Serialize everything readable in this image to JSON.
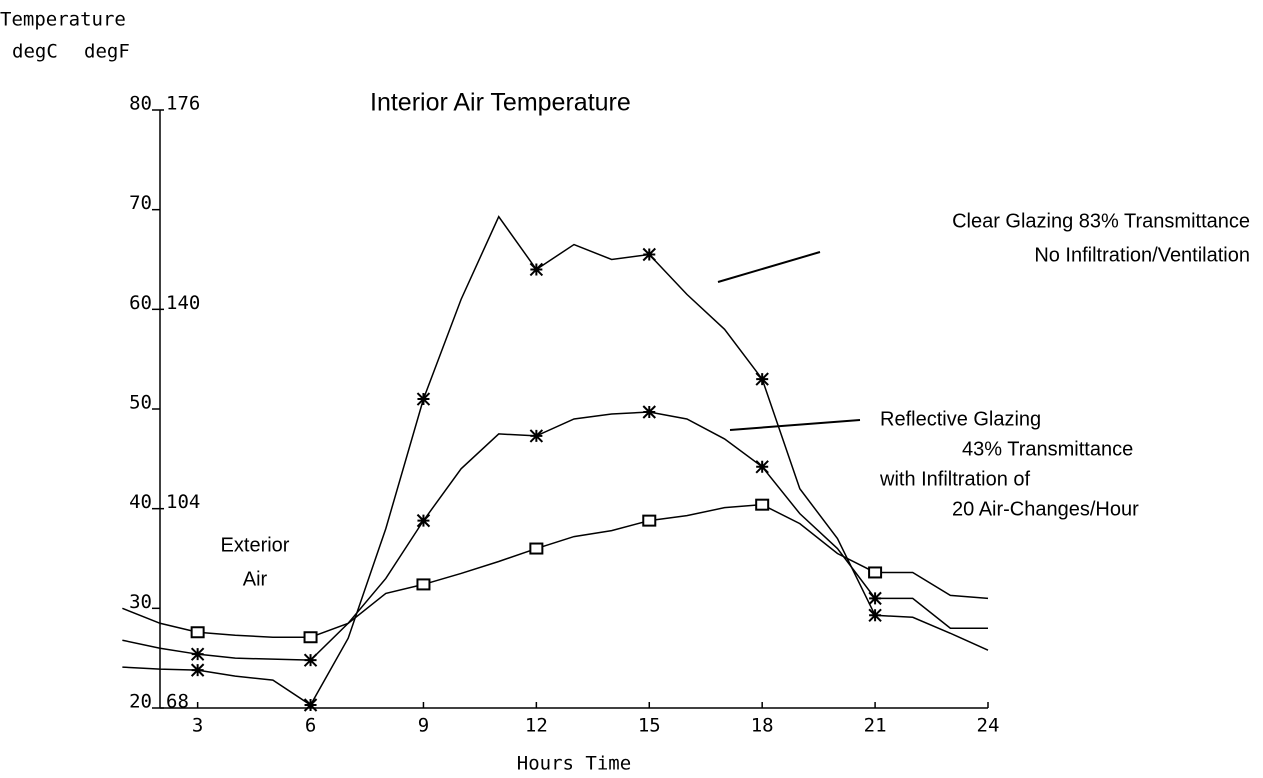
{
  "chart_data": {
    "type": "line",
    "title": "Interior Air Temperature",
    "y_axis_title": "Temperature",
    "y_unit": "degC",
    "y2_unit": "degF",
    "x_label": "Hours Time",
    "x": [
      1,
      2,
      3,
      4,
      5,
      6,
      7,
      8,
      9,
      10,
      11,
      12,
      13,
      14,
      15,
      16,
      17,
      18,
      19,
      20,
      21,
      22,
      23,
      24
    ],
    "xlim": [
      2,
      24
    ],
    "xticks": [
      3,
      6,
      9,
      12,
      15,
      18,
      21,
      24
    ],
    "ylim": [
      20,
      80
    ],
    "yticks": [
      20,
      30,
      40,
      50,
      60,
      70,
      80
    ],
    "y2lim": [
      68,
      176
    ],
    "y2ticks": [
      68,
      104,
      140,
      176
    ],
    "grid": false,
    "series": [
      {
        "color": "#000000",
        "marker": "star",
        "values": [
          24.1,
          23.9,
          23.8,
          23.2,
          22.8,
          20.3,
          27,
          38,
          51,
          61,
          69.3,
          64,
          66.5,
          65,
          65.5,
          61.5,
          58,
          53,
          42,
          37,
          29.3,
          29.1,
          27.5,
          25.8
        ]
      },
      {
        "color": "#000000",
        "marker": "star",
        "values": [
          26.8,
          26,
          25.4,
          25,
          24.9,
          24.8,
          28.5,
          33,
          38.8,
          44,
          47.5,
          47.3,
          49,
          49.5,
          49.7,
          49,
          47,
          44.2,
          39.5,
          36,
          31,
          31,
          28,
          28
        ]
      },
      {
        "color": "#000000",
        "marker": "square",
        "values": [
          30,
          28.5,
          27.6,
          27.3,
          27.1,
          27.1,
          28.5,
          31.5,
          32.4,
          33.5,
          34.7,
          36,
          37.2,
          37.8,
          38.8,
          39.3,
          40.1,
          40.4,
          38.5,
          35.5,
          33.6,
          33.6,
          31.3,
          31
        ]
      }
    ],
    "annotations": [
      {
        "lines": [
          "Clear Glazing 83% Transmittance",
          "No Infiltration/Ventilation"
        ]
      },
      {
        "lines": [
          "Reflective Glazing",
          "43% Transmittance",
          "with Infiltration of",
          "20 Air-Changes/Hour"
        ]
      },
      {
        "lines": [
          "Exterior",
          "Air"
        ]
      }
    ]
  }
}
